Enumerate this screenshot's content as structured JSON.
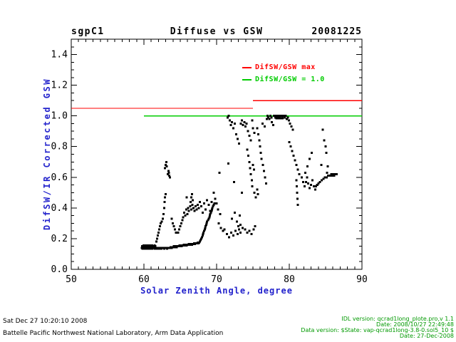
{
  "header": {
    "site": "sgpC1",
    "date": "20081225"
  },
  "colors": {
    "axis_label_blue": "#2222cc",
    "version_text_green": "#009900",
    "ref_red": "#ff0000",
    "ref_green": "#00cc00",
    "marker_black": "#000000"
  },
  "legend": [
    {
      "label": "DifSW/GSW max",
      "color": "#ff0000"
    },
    {
      "label": "DifSW/GSW = 1.0",
      "color": "#00cc00"
    }
  ],
  "footer_left": [
    "Sat Dec 27 10:20:10 2008",
    "Battelle Pacific Northwest National Laboratory, Arm Data Application"
  ],
  "footer_right": [
    "IDL version: qcrad1long_plote.pro,v 1.1",
    "Date: 2008/10/27 22:49:48",
    "Data version: $State: vap-qcrad1long-3.8-0.sol5_10 $",
    "Date: 27-Dec-2008"
  ],
  "chart_data": {
    "type": "scatter",
    "title": "Diffuse vs GSW",
    "site": "sgpC1",
    "date_label": "20081225",
    "xlabel": "Solar Zenith Angle, degree",
    "ylabel": "DifSW/IR Corrected GSW",
    "xlim": [
      50,
      90
    ],
    "ylim": [
      0,
      1.5
    ],
    "x_major_ticks": [
      50,
      60,
      70,
      80,
      90
    ],
    "x_minor_step": 1,
    "y_major_ticks": [
      0.0,
      0.2,
      0.4,
      0.6,
      0.8,
      1.0,
      1.2,
      1.4
    ],
    "y_minor_step": 0.05,
    "grid": false,
    "legend_position": "upper-right-inside",
    "marker": "square",
    "marker_size_px": 3,
    "reference_lines": [
      {
        "name": "DifSW/GSW max",
        "color": "#ff0000",
        "segments": [
          [
            [
              50,
              1.05
            ],
            [
              75,
              1.05
            ]
          ],
          [
            [
              75,
              1.1
            ],
            [
              90,
              1.1
            ]
          ]
        ]
      },
      {
        "name": "DifSW/GSW = 1.0",
        "color": "#00cc00",
        "segments": [
          [
            [
              60,
              1.0
            ],
            [
              90,
              1.0
            ]
          ]
        ]
      }
    ],
    "points": [
      [
        59.7,
        0.14
      ],
      [
        59.8,
        0.135
      ],
      [
        59.9,
        0.14
      ],
      [
        60,
        0.135
      ],
      [
        60.1,
        0.14
      ],
      [
        60.2,
        0.135
      ],
      [
        60.3,
        0.14
      ],
      [
        60.4,
        0.14
      ],
      [
        60.5,
        0.135
      ],
      [
        60.6,
        0.14
      ],
      [
        60.7,
        0.135
      ],
      [
        60.8,
        0.14
      ],
      [
        60.9,
        0.14
      ],
      [
        61,
        0.135
      ],
      [
        61.1,
        0.14
      ],
      [
        61.2,
        0.135
      ],
      [
        61.3,
        0.14
      ],
      [
        61.4,
        0.14
      ],
      [
        61.5,
        0.135
      ],
      [
        61.6,
        0.14
      ],
      [
        61.7,
        0.14
      ],
      [
        61.8,
        0.135
      ],
      [
        61.9,
        0.14
      ],
      [
        62,
        0.14
      ],
      [
        62.1,
        0.135
      ],
      [
        62.2,
        0.14
      ],
      [
        62.3,
        0.14
      ],
      [
        62.4,
        0.135
      ],
      [
        62.5,
        0.14
      ],
      [
        62.6,
        0.14
      ],
      [
        62.7,
        0.14
      ],
      [
        62.8,
        0.135
      ],
      [
        62.9,
        0.14
      ],
      [
        63,
        0.14
      ],
      [
        63.1,
        0.14
      ],
      [
        63.2,
        0.135
      ],
      [
        63.3,
        0.14
      ],
      [
        63.4,
        0.14
      ],
      [
        63.5,
        0.14
      ],
      [
        63.6,
        0.14
      ],
      [
        63.7,
        0.145
      ],
      [
        63.8,
        0.14
      ],
      [
        63.9,
        0.145
      ],
      [
        64,
        0.145
      ],
      [
        64.1,
        0.15
      ],
      [
        64.2,
        0.145
      ],
      [
        64.3,
        0.15
      ],
      [
        64.4,
        0.15
      ],
      [
        64.5,
        0.145
      ],
      [
        64.6,
        0.15
      ],
      [
        64.7,
        0.15
      ],
      [
        64.8,
        0.15
      ],
      [
        64.9,
        0.155
      ],
      [
        65,
        0.15
      ],
      [
        65.1,
        0.155
      ],
      [
        65.2,
        0.15
      ],
      [
        65.3,
        0.155
      ],
      [
        65.4,
        0.155
      ],
      [
        65.5,
        0.16
      ],
      [
        65.6,
        0.155
      ],
      [
        65.7,
        0.16
      ],
      [
        65.8,
        0.16
      ],
      [
        65.9,
        0.155
      ],
      [
        66,
        0.16
      ],
      [
        66.1,
        0.16
      ],
      [
        66.2,
        0.165
      ],
      [
        66.3,
        0.16
      ],
      [
        66.4,
        0.165
      ],
      [
        66.5,
        0.165
      ],
      [
        66.6,
        0.16
      ],
      [
        66.7,
        0.165
      ],
      [
        66.8,
        0.165
      ],
      [
        66.9,
        0.17
      ],
      [
        67,
        0.165
      ],
      [
        67.1,
        0.17
      ],
      [
        67.2,
        0.17
      ],
      [
        67.3,
        0.17
      ],
      [
        67.4,
        0.175
      ],
      [
        67.5,
        0.17
      ],
      [
        67.6,
        0.175
      ],
      [
        67.7,
        0.18
      ],
      [
        59.75,
        0.15
      ],
      [
        59.85,
        0.15
      ],
      [
        59.95,
        0.155
      ],
      [
        60.05,
        0.15
      ],
      [
        60.15,
        0.15
      ],
      [
        60.25,
        0.155
      ],
      [
        60.35,
        0.15
      ],
      [
        60.45,
        0.15
      ],
      [
        60.55,
        0.155
      ],
      [
        60.65,
        0.15
      ],
      [
        60.75,
        0.15
      ],
      [
        60.85,
        0.155
      ],
      [
        60.95,
        0.15
      ],
      [
        61.05,
        0.15
      ],
      [
        61.15,
        0.155
      ],
      [
        61.25,
        0.15
      ],
      [
        61.35,
        0.15
      ],
      [
        61.45,
        0.155
      ],
      [
        61.55,
        0.15
      ],
      [
        67.8,
        0.19
      ],
      [
        67.9,
        0.2
      ],
      [
        68,
        0.21
      ],
      [
        68.1,
        0.22
      ],
      [
        68.15,
        0.23
      ],
      [
        68.2,
        0.24
      ],
      [
        68.3,
        0.25
      ],
      [
        68.4,
        0.26
      ],
      [
        68.45,
        0.27
      ],
      [
        68.5,
        0.28
      ],
      [
        68.6,
        0.29
      ],
      [
        68.65,
        0.3
      ],
      [
        68.7,
        0.31
      ],
      [
        68.8,
        0.32
      ],
      [
        68.9,
        0.33
      ],
      [
        69,
        0.34
      ],
      [
        69.05,
        0.35
      ],
      [
        69.1,
        0.36
      ],
      [
        69.2,
        0.37
      ],
      [
        69.3,
        0.38
      ],
      [
        69.35,
        0.39
      ],
      [
        69.4,
        0.4
      ],
      [
        69.5,
        0.41
      ],
      [
        69.6,
        0.42
      ],
      [
        69.7,
        0.43
      ],
      [
        61.7,
        0.18
      ],
      [
        61.8,
        0.2
      ],
      [
        61.9,
        0.22
      ],
      [
        62,
        0.24
      ],
      [
        62.1,
        0.26
      ],
      [
        62.2,
        0.28
      ],
      [
        62.3,
        0.3
      ],
      [
        62.45,
        0.31
      ],
      [
        62.6,
        0.33
      ],
      [
        62.7,
        0.36
      ],
      [
        62.8,
        0.4
      ],
      [
        62.85,
        0.44
      ],
      [
        62.9,
        0.47
      ],
      [
        63,
        0.49
      ],
      [
        62.9,
        0.66
      ],
      [
        63,
        0.68
      ],
      [
        63.1,
        0.7
      ],
      [
        63.15,
        0.67
      ],
      [
        63.3,
        0.62
      ],
      [
        63.4,
        0.64
      ],
      [
        63.45,
        0.63
      ],
      [
        63.5,
        0.61
      ],
      [
        63.6,
        0.6
      ],
      [
        63.8,
        0.33
      ],
      [
        63.95,
        0.3
      ],
      [
        64.1,
        0.28
      ],
      [
        64.25,
        0.26
      ],
      [
        64.4,
        0.24
      ],
      [
        64.55,
        0.24
      ],
      [
        64.7,
        0.24
      ],
      [
        64.85,
        0.26
      ],
      [
        65,
        0.28
      ],
      [
        65.15,
        0.3
      ],
      [
        65.3,
        0.32
      ],
      [
        65.4,
        0.34
      ],
      [
        65.55,
        0.37
      ],
      [
        65.7,
        0.35
      ],
      [
        65.85,
        0.39
      ],
      [
        66,
        0.36
      ],
      [
        66.1,
        0.4
      ],
      [
        66.2,
        0.38
      ],
      [
        66.35,
        0.41
      ],
      [
        66.5,
        0.39
      ],
      [
        66.65,
        0.42
      ],
      [
        66.8,
        0.4
      ],
      [
        66.95,
        0.38
      ],
      [
        67.1,
        0.41
      ],
      [
        67.25,
        0.39
      ],
      [
        67.4,
        0.42
      ],
      [
        67.55,
        0.4
      ],
      [
        65.9,
        0.47
      ],
      [
        66.4,
        0.44
      ],
      [
        66.5,
        0.47
      ],
      [
        66.6,
        0.49
      ],
      [
        66.7,
        0.45
      ],
      [
        67.7,
        0.44
      ],
      [
        67.9,
        0.41
      ],
      [
        68.1,
        0.37
      ],
      [
        68.3,
        0.43
      ],
      [
        68.5,
        0.39
      ],
      [
        68.7,
        0.45
      ],
      [
        68.9,
        0.42
      ],
      [
        69.1,
        0.38
      ],
      [
        69.3,
        0.44
      ],
      [
        69.5,
        0.41
      ],
      [
        69.6,
        0.5
      ],
      [
        69.8,
        0.46
      ],
      [
        70,
        0.43
      ],
      [
        70.2,
        0.39
      ],
      [
        70.4,
        0.63
      ],
      [
        70.5,
        0.36
      ],
      [
        70.3,
        0.3
      ],
      [
        70.6,
        0.27
      ],
      [
        70.9,
        0.25
      ],
      [
        71.1,
        0.26
      ],
      [
        71.4,
        0.23
      ],
      [
        71.7,
        0.21
      ],
      [
        72,
        0.24
      ],
      [
        72.3,
        0.22
      ],
      [
        72.6,
        0.25
      ],
      [
        72.9,
        0.23
      ],
      [
        73.1,
        0.26
      ],
      [
        73.3,
        0.24
      ],
      [
        73,
        0.28
      ],
      [
        73.3,
        0.29
      ],
      [
        73.6,
        0.27
      ],
      [
        73.9,
        0.26
      ],
      [
        74.2,
        0.24
      ],
      [
        74.5,
        0.25
      ],
      [
        74.8,
        0.23
      ],
      [
        75.1,
        0.26
      ],
      [
        75.3,
        0.28
      ],
      [
        71.6,
        0.69
      ],
      [
        72.4,
        0.57
      ],
      [
        73.5,
        0.5
      ],
      [
        72.1,
        0.33
      ],
      [
        72.5,
        0.37
      ],
      [
        72.8,
        0.31
      ],
      [
        73.2,
        0.35
      ],
      [
        71.5,
        0.99
      ],
      [
        71.65,
        1
      ],
      [
        71.8,
        0.97
      ],
      [
        71.95,
        0.94
      ],
      [
        72.1,
        0.96
      ],
      [
        72.3,
        0.92
      ],
      [
        72.5,
        0.95
      ],
      [
        72.7,
        0.88
      ],
      [
        72.9,
        0.85
      ],
      [
        73.1,
        0.82
      ],
      [
        73.35,
        0.95
      ],
      [
        73.5,
        0.97
      ],
      [
        73.65,
        0.94
      ],
      [
        73.8,
        0.96
      ],
      [
        73.95,
        0.93
      ],
      [
        74.1,
        0.95
      ],
      [
        74.3,
        0.9
      ],
      [
        74.5,
        0.87
      ],
      [
        74.7,
        0.84
      ],
      [
        74.9,
        0.97
      ],
      [
        75,
        0.92
      ],
      [
        75.2,
        0.89
      ],
      [
        74.2,
        0.78
      ],
      [
        74.35,
        0.74
      ],
      [
        74.5,
        0.7
      ],
      [
        74.6,
        0.66
      ],
      [
        74.7,
        0.62
      ],
      [
        74.85,
        0.58
      ],
      [
        75,
        0.68
      ],
      [
        75.15,
        0.65
      ],
      [
        74.9,
        0.54
      ],
      [
        75.2,
        0.5
      ],
      [
        75.4,
        0.47
      ],
      [
        75.6,
        0.52
      ],
      [
        75.7,
        0.49
      ],
      [
        75.6,
        0.92
      ],
      [
        75.75,
        0.88
      ],
      [
        75.9,
        0.84
      ],
      [
        76,
        0.8
      ],
      [
        76.1,
        0.76
      ],
      [
        76.2,
        0.72
      ],
      [
        76.35,
        0.68
      ],
      [
        76.5,
        0.64
      ],
      [
        76.65,
        0.6
      ],
      [
        76.8,
        0.56
      ],
      [
        76.9,
        0.98
      ],
      [
        77,
        1
      ],
      [
        77.1,
        0.99
      ],
      [
        77.25,
        0.98
      ],
      [
        77.4,
        1
      ],
      [
        77.55,
        0.99
      ],
      [
        77.9,
        1
      ],
      [
        78,
        1
      ],
      [
        78.1,
        0.99
      ],
      [
        78.2,
        1
      ],
      [
        78.25,
        0.985
      ],
      [
        78.3,
        1
      ],
      [
        78.4,
        0.99
      ],
      [
        78.45,
        0.985
      ],
      [
        78.5,
        1
      ],
      [
        78.6,
        1
      ],
      [
        78.65,
        0.985
      ],
      [
        78.7,
        0.99
      ],
      [
        78.8,
        1
      ],
      [
        78.85,
        0.985
      ],
      [
        78.9,
        1
      ],
      [
        79,
        0.99
      ],
      [
        79.05,
        0.985
      ],
      [
        79.1,
        1
      ],
      [
        79.2,
        1
      ],
      [
        79.35,
        0.99
      ],
      [
        79.5,
        1
      ],
      [
        79.65,
        0.98
      ],
      [
        79.8,
        0.99
      ],
      [
        79.95,
        0.97
      ],
      [
        76.3,
        0.95
      ],
      [
        76.6,
        0.93
      ],
      [
        77.6,
        0.96
      ],
      [
        77.8,
        0.94
      ],
      [
        80.1,
        0.95
      ],
      [
        80.3,
        0.93
      ],
      [
        80.5,
        0.91
      ],
      [
        80,
        0.83
      ],
      [
        80.2,
        0.8
      ],
      [
        80.4,
        0.77
      ],
      [
        80.6,
        0.74
      ],
      [
        80.8,
        0.71
      ],
      [
        81,
        0.68
      ],
      [
        81.2,
        0.65
      ],
      [
        81.35,
        0.62
      ],
      [
        81,
        0.58
      ],
      [
        81.05,
        0.54
      ],
      [
        81.1,
        0.5
      ],
      [
        81.15,
        0.46
      ],
      [
        81.2,
        0.42
      ],
      [
        81.7,
        0.6
      ],
      [
        81.9,
        0.57
      ],
      [
        82.1,
        0.54
      ],
      [
        82.2,
        0.63
      ],
      [
        82.3,
        0.57
      ],
      [
        82.45,
        0.6
      ],
      [
        82.5,
        0.67
      ],
      [
        82.6,
        0.56
      ],
      [
        82.8,
        0.53
      ],
      [
        82.8,
        0.72
      ],
      [
        83,
        0.55
      ],
      [
        83.1,
        0.76
      ],
      [
        83.2,
        0.58
      ],
      [
        83.4,
        0.54
      ],
      [
        83.6,
        0.52
      ],
      [
        83.8,
        0.55
      ],
      [
        84.6,
        0.91
      ],
      [
        84.8,
        0.84
      ],
      [
        85,
        0.8
      ],
      [
        85.1,
        0.76
      ],
      [
        84.4,
        0.68
      ],
      [
        85.3,
        0.67
      ],
      [
        85.2,
        0.63
      ],
      [
        84.9,
        0.6
      ],
      [
        83.7,
        0.54
      ],
      [
        83.85,
        0.55
      ],
      [
        84,
        0.56
      ],
      [
        84.2,
        0.57
      ],
      [
        84.45,
        0.58
      ],
      [
        84.7,
        0.59
      ],
      [
        84.95,
        0.6
      ],
      [
        85.15,
        0.6
      ],
      [
        85.35,
        0.61
      ],
      [
        85.5,
        0.61
      ],
      [
        85.6,
        0.61
      ],
      [
        85.7,
        0.61
      ],
      [
        85.8,
        0.62
      ],
      [
        85.9,
        0.62
      ],
      [
        86,
        0.61
      ],
      [
        86.05,
        0.62
      ],
      [
        86.1,
        0.62
      ],
      [
        86.2,
        0.61
      ],
      [
        86.3,
        0.62
      ],
      [
        86.35,
        0.62
      ],
      [
        86.45,
        0.62
      ],
      [
        86.5,
        0.62
      ]
    ]
  }
}
